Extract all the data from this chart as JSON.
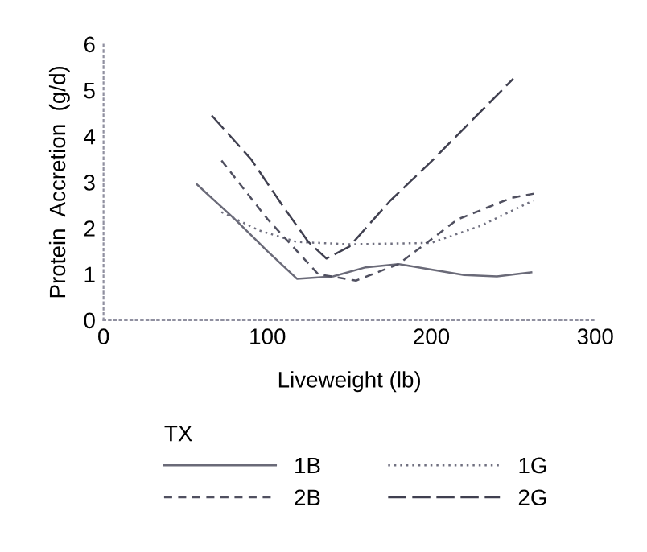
{
  "chart_data": {
    "type": "line",
    "xlabel": "Liveweight (lb)",
    "ylabel": "Protein  Accretion  (g/d)",
    "legend_title": "TX",
    "legend": "bottom",
    "xlim": [
      0,
      300
    ],
    "xticks": [
      0,
      100,
      200,
      300
    ],
    "ylim": [
      0,
      6
    ],
    "yticks": [
      0,
      1,
      2,
      3,
      4,
      5,
      6
    ],
    "grid": false,
    "series": [
      {
        "name": "1B",
        "color": "#6a6a78",
        "line_style": "solid",
        "x": [
          57,
          80,
          100,
          118,
          140,
          160,
          180,
          200,
          220,
          240,
          261
        ],
        "values": [
          2.95,
          2.2,
          1.5,
          0.9,
          0.95,
          1.15,
          1.22,
          1.1,
          0.98,
          0.95,
          1.04
        ]
      },
      {
        "name": "1G",
        "color": "#707080",
        "line_style": "dotted",
        "x": [
          72,
          95,
          118,
          150,
          200,
          230,
          262
        ],
        "values": [
          2.35,
          1.95,
          1.7,
          1.65,
          1.68,
          2.05,
          2.6
        ]
      },
      {
        "name": "2B",
        "color": "#505060",
        "line_style": "dashed",
        "x": [
          72,
          100,
          131,
          154,
          180,
          216,
          249,
          264
        ],
        "values": [
          3.47,
          2.2,
          1.0,
          0.86,
          1.22,
          2.19,
          2.66,
          2.76
        ]
      },
      {
        "name": "2G",
        "color": "#404050",
        "line_style": "longdash",
        "x": [
          66,
          90,
          110,
          125,
          136,
          150,
          175,
          200,
          225,
          250
        ],
        "values": [
          4.45,
          3.5,
          2.45,
          1.7,
          1.34,
          1.6,
          2.6,
          3.45,
          4.35,
          5.25
        ]
      }
    ]
  }
}
